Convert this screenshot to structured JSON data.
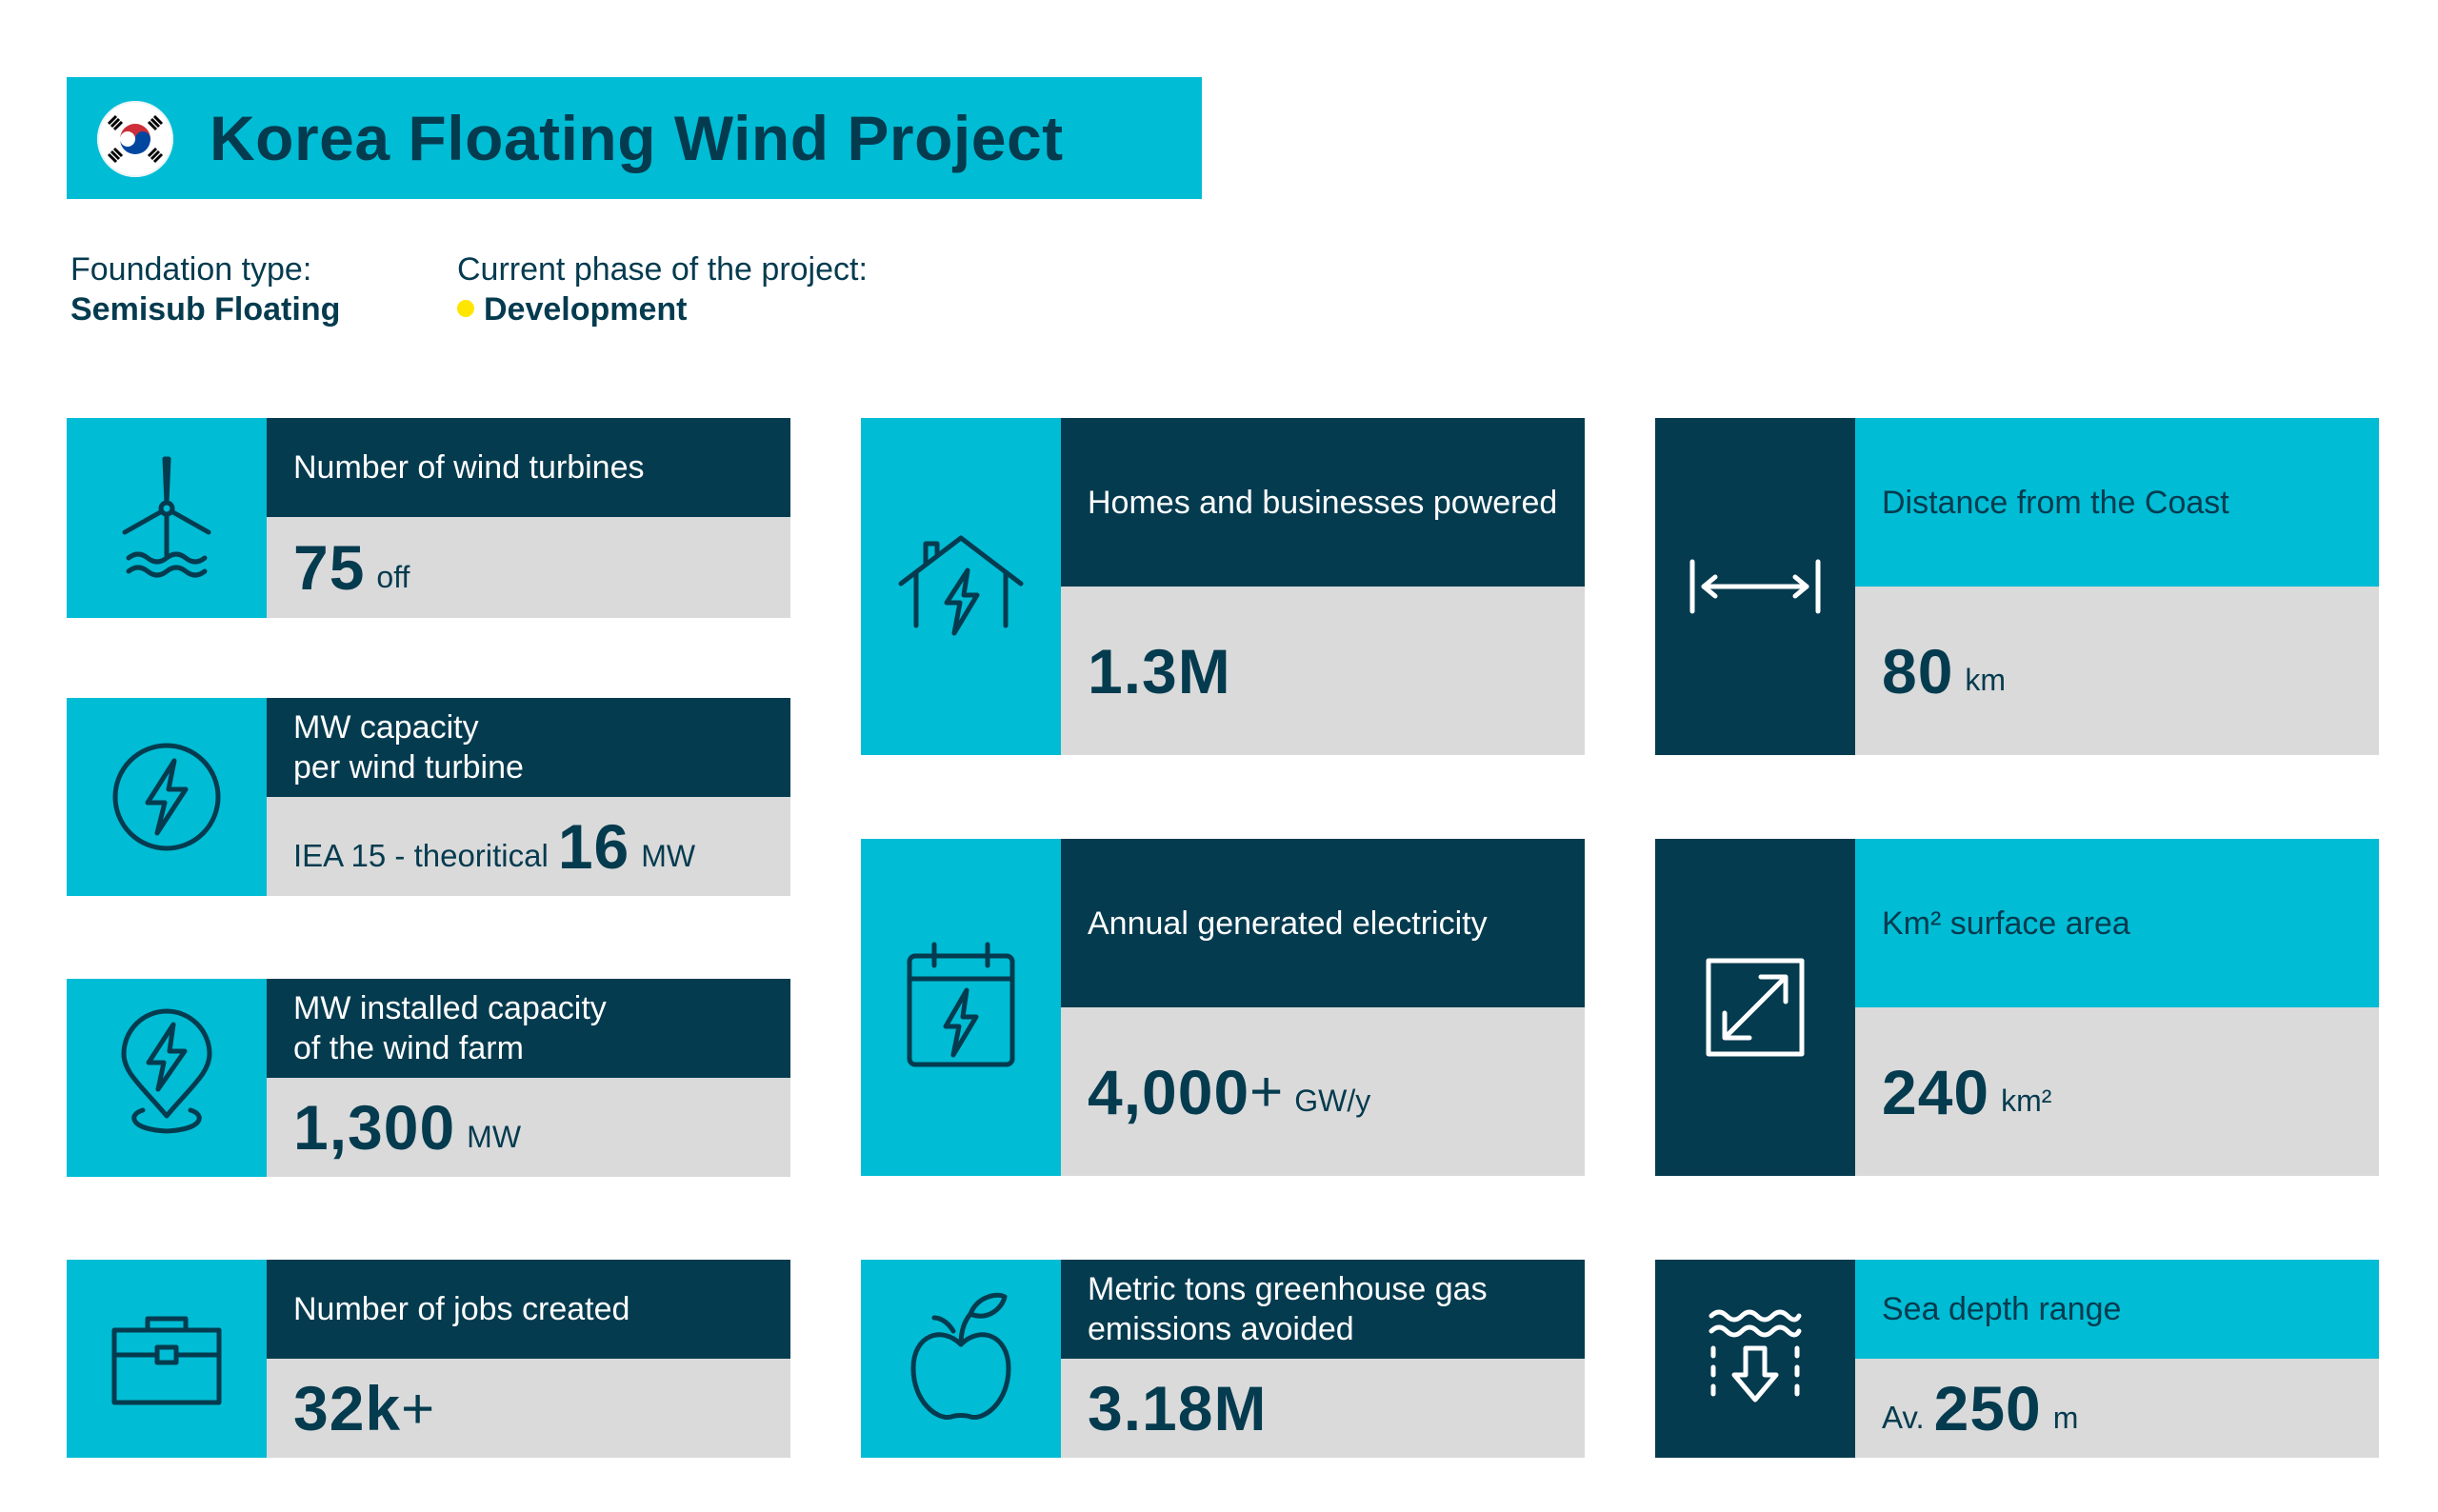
{
  "title": "Korea Floating Wind Project",
  "flag_icon": "south-korea-flag-icon",
  "foundation": {
    "label": "Foundation type:",
    "value": "Semisub Floating"
  },
  "phase": {
    "label": "Current phase of the project:",
    "value": "Development",
    "status_color": "#ffe600"
  },
  "colors": {
    "cyan": "#00bcd4",
    "navy": "#053b4f",
    "grey": "#dadada"
  },
  "cards": {
    "turbines": {
      "label": "Number of wind turbines",
      "value": "75",
      "unit": "off",
      "icon": "wind-turbine-icon"
    },
    "capacity_per_turbine": {
      "label_line1": "MW capacity",
      "label_line2": "per wind turbine",
      "prefix": "IEA 15 - theoritical",
      "value": "16",
      "unit": "MW",
      "icon": "lightning-circle-icon"
    },
    "installed_capacity": {
      "label_line1": "MW installed capacity",
      "label_line2": "of the wind farm",
      "value": "1,300",
      "unit": "MW",
      "icon": "location-lightning-icon"
    },
    "jobs": {
      "label": "Number of jobs created",
      "value": "32k",
      "plus": "+",
      "icon": "briefcase-icon"
    },
    "homes": {
      "label": "Homes and businesses powered",
      "value": "1.3M",
      "icon": "house-lightning-icon"
    },
    "electricity": {
      "label": "Annual generated electricity",
      "value": "4,000",
      "plus": "+",
      "unit": "GW/y",
      "icon": "calendar-lightning-icon"
    },
    "emissions": {
      "label_line1": "Metric tons greenhouse gas",
      "label_line2": "emissions avoided",
      "value": "3.18M",
      "icon": "apple-icon"
    },
    "distance": {
      "label": "Distance from the Coast",
      "value": "80",
      "unit": "km",
      "icon": "distance-arrow-icon"
    },
    "surface": {
      "label": "Km² surface area",
      "value": "240",
      "unit": "km²",
      "icon": "expand-area-icon"
    },
    "depth": {
      "label": "Sea depth range",
      "prefix": "Av.",
      "value": "250",
      "unit": "m",
      "icon": "sea-depth-icon"
    }
  }
}
